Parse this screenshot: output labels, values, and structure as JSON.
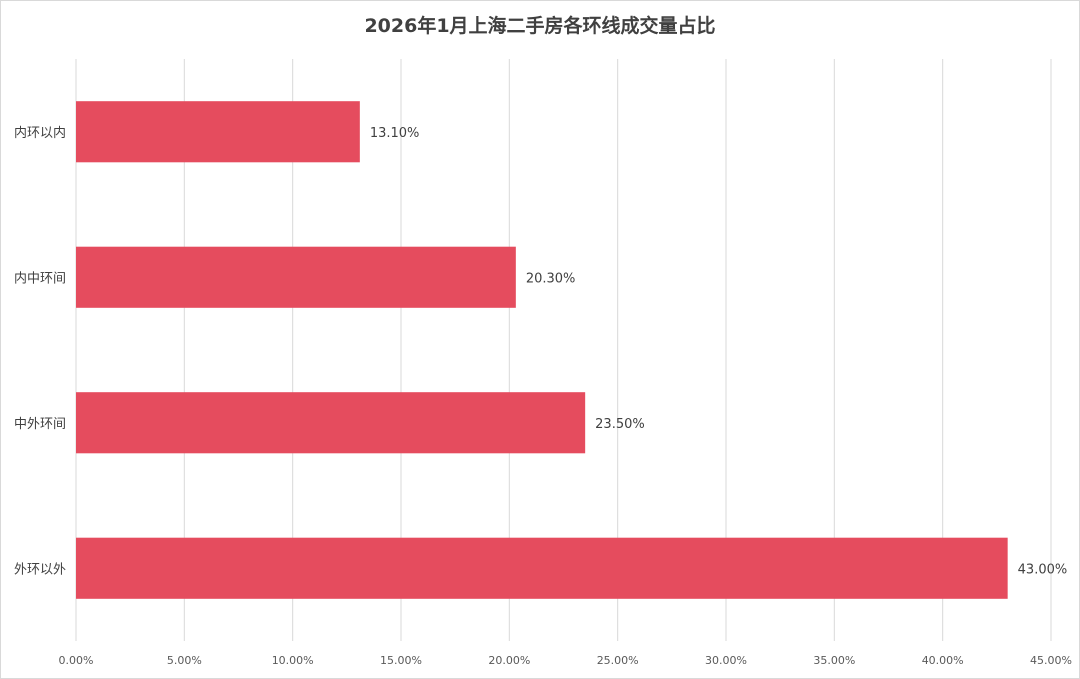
{
  "chart_data": {
    "type": "bar",
    "orientation": "horizontal",
    "title": "2026年1月上海二手房各环线成交量占比",
    "categories": [
      "内环以内",
      "内中环间",
      "中外环间",
      "外环以外"
    ],
    "values": [
      13.1,
      20.3,
      23.5,
      43.0
    ],
    "value_labels": [
      "13.10%",
      "20.30%",
      "23.50%",
      "43.00%"
    ],
    "xlim": [
      0,
      45
    ],
    "x_ticks": [
      "0.00%",
      "5.00%",
      "10.00%",
      "15.00%",
      "20.00%",
      "25.00%",
      "30.00%",
      "35.00%",
      "40.00%",
      "45.00%"
    ],
    "grid": "vertical",
    "bar_color": "#e54c5e",
    "gridline_color": "#d9d9d9"
  }
}
